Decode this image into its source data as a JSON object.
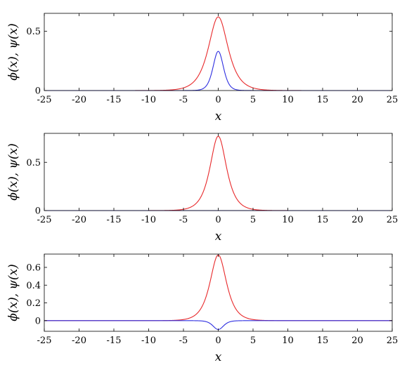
{
  "chart_data": [
    {
      "type": "line",
      "xlabel": "x",
      "ylabel": "ϕ(x), ψ(x)",
      "xlim": [
        -25,
        25
      ],
      "ylim": [
        0,
        0.65
      ],
      "xticks": [
        -25,
        -20,
        -15,
        -10,
        -5,
        0,
        5,
        10,
        15,
        20,
        25
      ],
      "xtick_labels": [
        "-25",
        "-20",
        "-15",
        "-10",
        "-5",
        "0",
        "5",
        "10",
        "15",
        "20",
        "25"
      ],
      "yticks": [
        0,
        0.5
      ],
      "ytick_labels": [
        "0",
        "0.5"
      ],
      "grid": false,
      "series": [
        {
          "color": "#e8292b",
          "shape": "sech",
          "amplitude": 0.62,
          "width": 1.25
        },
        {
          "color": "#2d2ee0",
          "shape": "sech2",
          "amplitude": 0.33,
          "width": 1.0
        }
      ]
    },
    {
      "type": "line",
      "xlabel": "x",
      "ylabel": "ϕ(x), ψ(x)",
      "xlim": [
        -25,
        25
      ],
      "ylim": [
        0,
        0.8
      ],
      "xticks": [
        -25,
        -20,
        -15,
        -10,
        -5,
        0,
        5,
        10,
        15,
        20,
        25
      ],
      "xtick_labels": [
        "-25",
        "-20",
        "-15",
        "-10",
        "-5",
        "0",
        "5",
        "10",
        "15",
        "20",
        "25"
      ],
      "yticks": [
        0,
        0.5
      ],
      "ytick_labels": [
        "0",
        "0.5"
      ],
      "grid": false,
      "series": [
        {
          "color": "#e8292b",
          "shape": "sech",
          "amplitude": 0.77,
          "width": 1.05
        },
        {
          "color": "#2d2ee0",
          "shape": "sech2",
          "amplitude": 0.0,
          "width": 1.0
        }
      ]
    },
    {
      "type": "line",
      "xlabel": "x",
      "ylabel": "ϕ(x), ψ(x)",
      "xlim": [
        -25,
        25
      ],
      "ylim": [
        -0.12,
        0.75
      ],
      "xticks": [
        -25,
        -20,
        -15,
        -10,
        -5,
        0,
        5,
        10,
        15,
        20,
        25
      ],
      "xtick_labels": [
        "-25",
        "-20",
        "-15",
        "-10",
        "-5",
        "0",
        "5",
        "10",
        "15",
        "20",
        "25"
      ],
      "yticks": [
        0,
        0.2,
        0.4,
        0.6
      ],
      "ytick_labels": [
        "0",
        "0.2",
        "0.4",
        "0.6"
      ],
      "grid": false,
      "series": [
        {
          "color": "#e8292b",
          "shape": "sech",
          "amplitude": 0.74,
          "width": 1.05
        },
        {
          "color": "#2d2ee0",
          "shape": "sech2",
          "amplitude": -0.1,
          "width": 1.0
        }
      ]
    }
  ]
}
